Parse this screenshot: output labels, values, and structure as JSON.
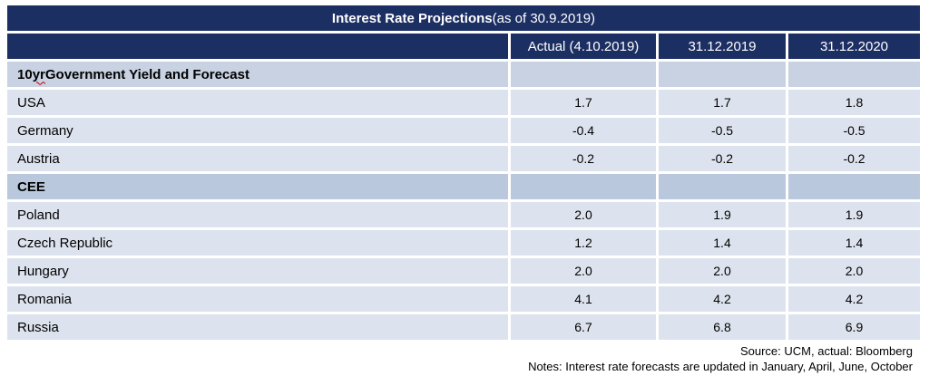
{
  "colors": {
    "page_bg": "#ffffff",
    "navy": "#1c2f63",
    "header_text": "#ffffff",
    "section1_row": "#c8d2e2",
    "section2_row": "#b9c8dc",
    "data_row": "#dde3ee",
    "text": "#000000",
    "squiggle": "#c00000"
  },
  "chart_data": {
    "type": "table",
    "title": "Interest Rate Projections",
    "title_suffix": " (as of 30.9.2019)",
    "columns": [
      "Actual (4.10.2019)",
      "31.12.2019",
      "31.12.2020"
    ],
    "rows": [
      {
        "kind": "section",
        "label": "10 yr Government Yield and Forecast",
        "label_parts": {
          "pre": "10 ",
          "squiggle": "yr",
          "post": " Government Yield and Forecast"
        },
        "values": [
          "",
          "",
          ""
        ]
      },
      {
        "kind": "data",
        "label": "USA",
        "values": [
          "1.7",
          "1.7",
          "1.8"
        ]
      },
      {
        "kind": "data",
        "label": "Germany",
        "values": [
          "-0.4",
          "-0.5",
          "-0.5"
        ]
      },
      {
        "kind": "data",
        "label": "Austria",
        "values": [
          "-0.2",
          "-0.2",
          "-0.2"
        ]
      },
      {
        "kind": "section",
        "label": "CEE",
        "values": [
          "",
          "",
          ""
        ]
      },
      {
        "kind": "data",
        "label": "Poland",
        "values": [
          "2.0",
          "1.9",
          "1.9"
        ]
      },
      {
        "kind": "data",
        "label": "Czech Republic",
        "values": [
          "1.2",
          "1.4",
          "1.4"
        ]
      },
      {
        "kind": "data",
        "label": "Hungary",
        "values": [
          "2.0",
          "2.0",
          "2.0"
        ]
      },
      {
        "kind": "data",
        "label": "Romania",
        "values": [
          "4.1",
          "4.2",
          "4.2"
        ]
      },
      {
        "kind": "data",
        "label": "Russia",
        "values": [
          "6.7",
          "6.8",
          "6.9"
        ]
      }
    ],
    "footer": {
      "source": "Source: UCM, actual: Bloomberg",
      "notes": "Notes: Interest rate forecasts are updated in January, April, June, October"
    }
  }
}
